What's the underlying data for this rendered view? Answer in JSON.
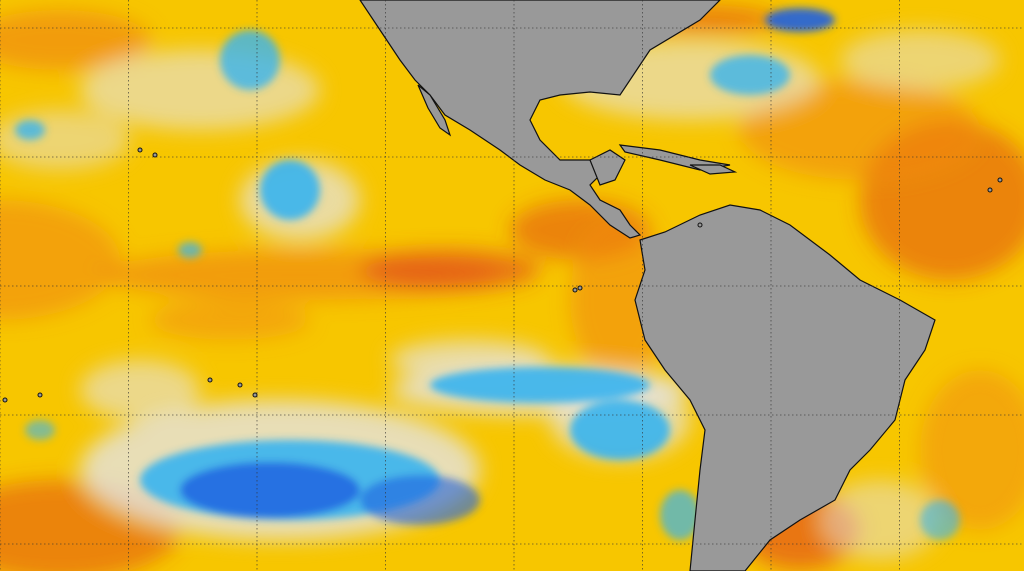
{
  "map": {
    "type": "sea-surface-temperature-anomaly",
    "colors": {
      "warm_base": "#f7c600",
      "warm_orange": "#f08a10",
      "hot_red": "#e0401a",
      "neutral": "#e4e4e4",
      "cool_light": "#39b4f0",
      "cool_deep": "#1f5fe0",
      "land": "#999999",
      "coastline": "#111111",
      "graticule": "#333333"
    }
  }
}
